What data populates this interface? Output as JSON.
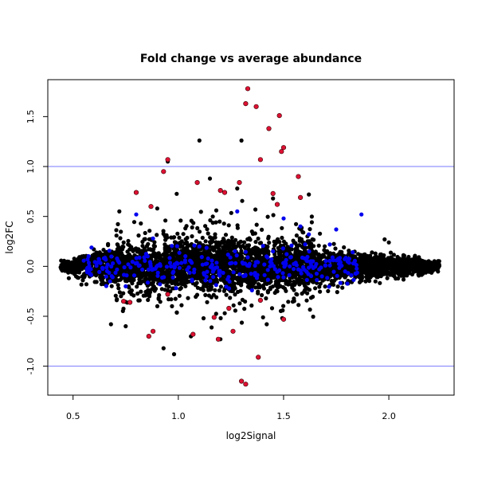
{
  "chart_data": {
    "type": "scatter",
    "title": "Fold change vs average abundance",
    "xlabel": "log2Signal",
    "ylabel": "log2FC",
    "xlim": [
      0.38,
      2.31
    ],
    "ylim": [
      -1.29,
      1.87
    ],
    "x_ticks": [
      0.5,
      1.0,
      1.5,
      2.0
    ],
    "x_tick_labels": [
      "0.5",
      "1.0",
      "1.5",
      "2.0"
    ],
    "y_ticks": [
      -1.0,
      -0.5,
      0.0,
      0.5,
      1.0,
      1.5
    ],
    "y_tick_labels": [
      "-1.0",
      "-0.5",
      "0.0",
      "0.5",
      "1.0",
      "1.5"
    ],
    "grid": false,
    "legend": "none",
    "reference_lines": {
      "orientation": "horizontal",
      "y": [
        1.0,
        -1.0
      ],
      "color": "#7777ff"
    },
    "series": [
      {
        "color": "#000000",
        "cloud": {
          "x_range": [
            0.44,
            2.24
          ],
          "center_y": 0.0,
          "note_shape": "dense band around 0, wider spread between 0.8 and 1.6"
        },
        "points": [
          {
            "x": 1.1,
            "y": 1.26
          },
          {
            "x": 1.3,
            "y": 1.26
          },
          {
            "x": 0.95,
            "y": 1.05
          },
          {
            "x": 1.15,
            "y": 0.88
          },
          {
            "x": 1.28,
            "y": 0.78
          },
          {
            "x": 1.62,
            "y": 0.72
          },
          {
            "x": 0.93,
            "y": -0.82
          },
          {
            "x": 0.98,
            "y": -0.88
          },
          {
            "x": 1.2,
            "y": -0.73
          },
          {
            "x": 1.42,
            "y": -0.58
          },
          {
            "x": 1.98,
            "y": 0.27
          },
          {
            "x": 2.0,
            "y": 0.24
          },
          {
            "x": 0.68,
            "y": -0.58
          },
          {
            "x": 0.75,
            "y": -0.6
          },
          {
            "x": 1.06,
            "y": -0.7
          },
          {
            "x": 0.72,
            "y": 0.55
          },
          {
            "x": 0.9,
            "y": 0.58
          },
          {
            "x": 1.45,
            "y": 0.68
          }
        ]
      },
      {
        "color": "#0000ee",
        "points": [
          {
            "x": 0.8,
            "y": 0.52
          },
          {
            "x": 1.28,
            "y": 0.55
          },
          {
            "x": 1.87,
            "y": 0.52
          },
          {
            "x": 1.5,
            "y": 0.48
          },
          {
            "x": 1.58,
            "y": 0.4
          },
          {
            "x": 1.62,
            "y": 0.32
          },
          {
            "x": 1.75,
            "y": 0.37
          },
          {
            "x": 0.88,
            "y": 0.28
          },
          {
            "x": 1.35,
            "y": -0.24
          },
          {
            "x": 0.75,
            "y": -0.2
          },
          {
            "x": 1.1,
            "y": 0.2
          },
          {
            "x": 1.45,
            "y": 0.15
          }
        ]
      },
      {
        "color": "#dd1133",
        "points": [
          {
            "x": 1.33,
            "y": 1.78
          },
          {
            "x": 1.32,
            "y": 1.63
          },
          {
            "x": 1.37,
            "y": 1.6
          },
          {
            "x": 1.48,
            "y": 1.51
          },
          {
            "x": 1.43,
            "y": 1.38
          },
          {
            "x": 1.5,
            "y": 1.19
          },
          {
            "x": 1.49,
            "y": 1.15
          },
          {
            "x": 0.95,
            "y": 1.07
          },
          {
            "x": 1.39,
            "y": 1.07
          },
          {
            "x": 0.93,
            "y": 0.95
          },
          {
            "x": 1.57,
            "y": 0.9
          },
          {
            "x": 1.09,
            "y": 0.84
          },
          {
            "x": 1.29,
            "y": 0.84
          },
          {
            "x": 1.2,
            "y": 0.76
          },
          {
            "x": 1.22,
            "y": 0.74
          },
          {
            "x": 0.8,
            "y": 0.74
          },
          {
            "x": 1.45,
            "y": 0.73
          },
          {
            "x": 1.58,
            "y": 0.69
          },
          {
            "x": 0.87,
            "y": 0.6
          },
          {
            "x": 1.47,
            "y": 0.62
          },
          {
            "x": 0.77,
            "y": -0.36
          },
          {
            "x": 0.95,
            "y": -0.28
          },
          {
            "x": 1.39,
            "y": -0.34
          },
          {
            "x": 1.24,
            "y": -0.42
          },
          {
            "x": 0.74,
            "y": -0.35
          },
          {
            "x": 1.17,
            "y": -0.51
          },
          {
            "x": 1.5,
            "y": -0.53
          },
          {
            "x": 1.07,
            "y": -0.68
          },
          {
            "x": 1.26,
            "y": -0.65
          },
          {
            "x": 0.88,
            "y": -0.65
          },
          {
            "x": 0.86,
            "y": -0.7
          },
          {
            "x": 1.19,
            "y": -0.73
          },
          {
            "x": 1.38,
            "y": -0.91
          },
          {
            "x": 1.3,
            "y": -1.15
          },
          {
            "x": 1.32,
            "y": -1.18
          }
        ]
      }
    ]
  }
}
